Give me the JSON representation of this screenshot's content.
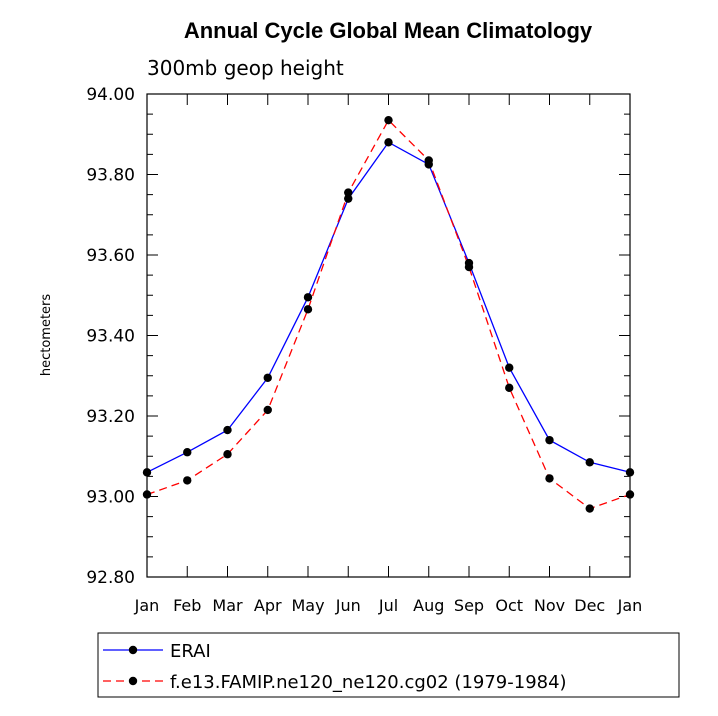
{
  "chart_data": {
    "type": "line",
    "title": "Annual Cycle Global Mean Climatology",
    "subtitle": "300mb geop height",
    "xlabel": "",
    "ylabel": "hectometers",
    "categories": [
      "Jan",
      "Feb",
      "Mar",
      "Apr",
      "May",
      "Jun",
      "Jul",
      "Aug",
      "Sep",
      "Oct",
      "Nov",
      "Dec",
      "Jan"
    ],
    "ylim": [
      92.8,
      94.0
    ],
    "yticks": [
      "92.80",
      "93.00",
      "93.20",
      "93.40",
      "93.60",
      "93.80",
      "94.00"
    ],
    "legend_position": "bottom",
    "series": [
      {
        "name": "ERAI",
        "color": "#0000ff",
        "dash": "solid",
        "values": [
          93.06,
          93.11,
          93.165,
          93.295,
          93.495,
          93.74,
          93.88,
          93.825,
          93.58,
          93.32,
          93.14,
          93.085,
          93.06
        ]
      },
      {
        "name": "f.e13.FAMIP.ne120_ne120.cg02 (1979-1984)",
        "color": "#ff0000",
        "dash": "dashed",
        "values": [
          93.005,
          93.04,
          93.105,
          93.215,
          93.465,
          93.755,
          93.935,
          93.835,
          93.57,
          93.27,
          93.045,
          92.97,
          93.005
        ]
      }
    ]
  }
}
